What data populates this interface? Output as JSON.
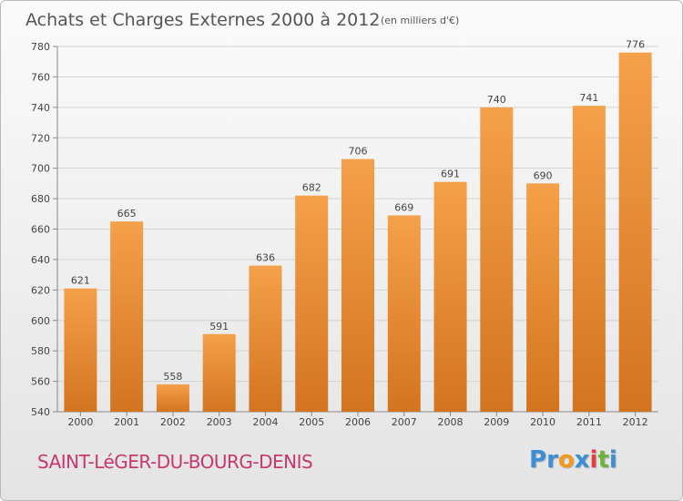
{
  "chart_data": {
    "type": "bar",
    "title": "Achats et Charges Externes 2000 à 2012",
    "unit": "(en milliers d'€)",
    "categories": [
      "2000",
      "2001",
      "2002",
      "2003",
      "2004",
      "2005",
      "2006",
      "2007",
      "2008",
      "2009",
      "2010",
      "2011",
      "2012"
    ],
    "values": [
      621,
      665,
      558,
      591,
      636,
      682,
      706,
      669,
      691,
      740,
      690,
      741,
      776
    ],
    "ylim": [
      540,
      780
    ],
    "yticks": [
      540,
      560,
      580,
      600,
      620,
      640,
      660,
      680,
      700,
      720,
      740,
      760,
      780
    ],
    "grid": true,
    "bar_color": "#f5a04a",
    "bar_color_dark": "#d37420"
  },
  "footer": {
    "commune": "SAINT-LéGER-DU-BOURG-DENIS",
    "logo_letters": [
      {
        "ch": "P",
        "color": "#3b8fd6"
      },
      {
        "ch": "r",
        "color": "#3b8fd6"
      },
      {
        "ch": "o",
        "color": "#f39a1e"
      },
      {
        "ch": "x",
        "color": "#3b8fd6"
      },
      {
        "ch": "i",
        "color": "#e23e3e"
      },
      {
        "ch": "t",
        "color": "#6db33f"
      },
      {
        "ch": "i",
        "color": "#3b8fd6"
      }
    ]
  }
}
